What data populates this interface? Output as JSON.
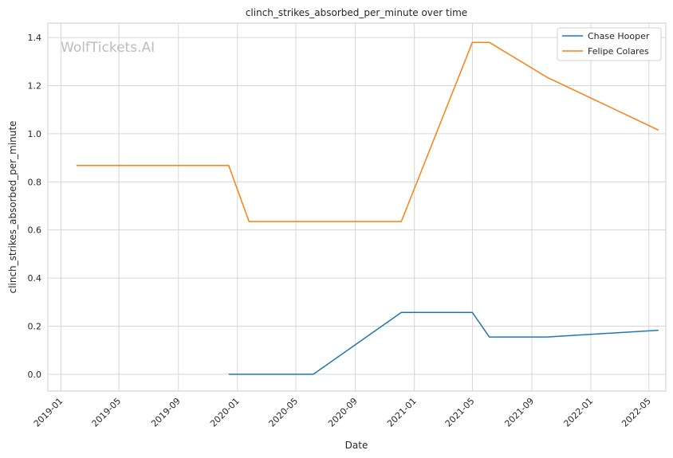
{
  "chart_data": {
    "type": "line",
    "title": "clinch_strikes_absorbed_per_minute over time",
    "xlabel": "Date",
    "ylabel": "clinch_strikes_absorbed_per_minute",
    "watermark": "WolfTickets.AI",
    "xlim": [
      "2018-12-05",
      "2022-06-05"
    ],
    "ylim": [
      -0.07,
      1.46
    ],
    "x_ticks": [
      "2019-01",
      "2019-05",
      "2019-09",
      "2020-01",
      "2020-05",
      "2020-09",
      "2021-01",
      "2021-05",
      "2021-09",
      "2022-01",
      "2022-05"
    ],
    "y_ticks": [
      "0.0",
      "0.2",
      "0.4",
      "0.6",
      "0.8",
      "1.0",
      "1.2",
      "1.4"
    ],
    "y_tick_values": [
      0,
      0.2,
      0.4,
      0.6,
      0.8,
      1.0,
      1.2,
      1.4
    ],
    "grid": true,
    "legend_position": "top-right",
    "series": [
      {
        "name": "Chase Hooper",
        "color": "#1f77b4",
        "x": [
          "2019-12-14",
          "2020-06-06",
          "2020-12-05",
          "2021-05-01",
          "2021-06-05",
          "2021-10-02",
          "2022-05-21"
        ],
        "y": [
          0.0,
          0.0,
          0.257,
          0.257,
          0.155,
          0.155,
          0.183
        ]
      },
      {
        "name": "Felipe Colares",
        "color": "#ff7f0e",
        "x": [
          "2019-02-02",
          "2019-12-14",
          "2020-01-25",
          "2020-12-05",
          "2021-05-01",
          "2021-06-05",
          "2021-10-02",
          "2022-05-21"
        ],
        "y": [
          0.868,
          0.868,
          0.635,
          0.635,
          1.38,
          1.38,
          1.235,
          1.015
        ]
      }
    ]
  }
}
